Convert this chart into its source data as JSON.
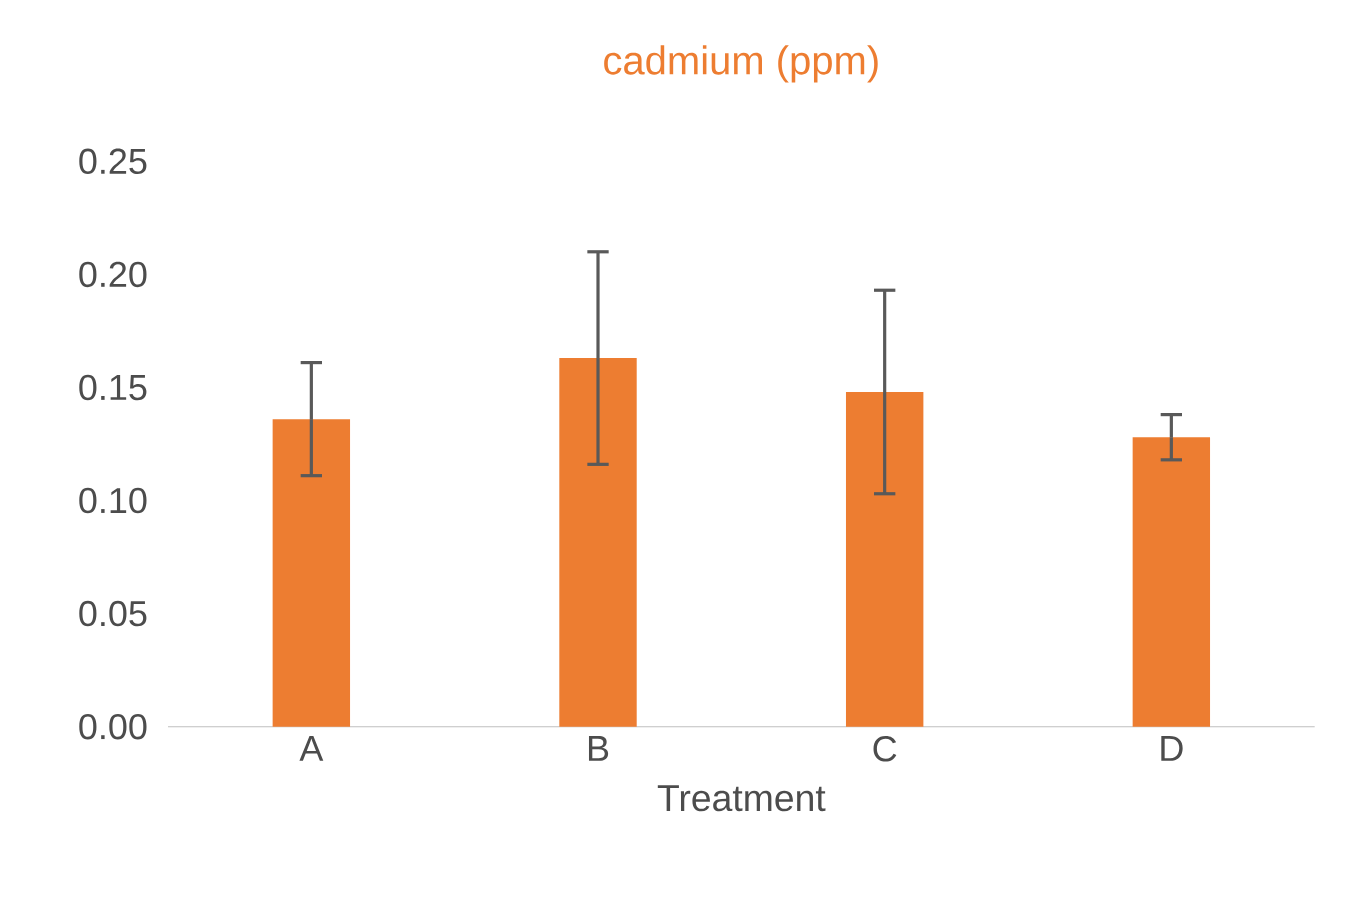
{
  "chart_data": {
    "type": "bar",
    "title": "cadmium (ppm)",
    "xlabel": "Treatment",
    "categories": [
      "A",
      "B",
      "C",
      "D"
    ],
    "values": [
      0.136,
      0.163,
      0.148,
      0.128
    ],
    "errors": [
      0.025,
      0.047,
      0.045,
      0.01
    ],
    "color": "#ed7d31",
    "ylim": [
      0,
      0.25
    ],
    "yticks": [
      {
        "value": 0,
        "label": "0.00"
      },
      {
        "value": 0.05,
        "label": "0.05"
      },
      {
        "value": 0.1,
        "label": "0.10"
      },
      {
        "value": 0.15,
        "label": "0.15"
      },
      {
        "value": 0.2,
        "label": "0.20"
      },
      {
        "value": 0.25,
        "label": "0.25"
      }
    ],
    "grid": false
  }
}
